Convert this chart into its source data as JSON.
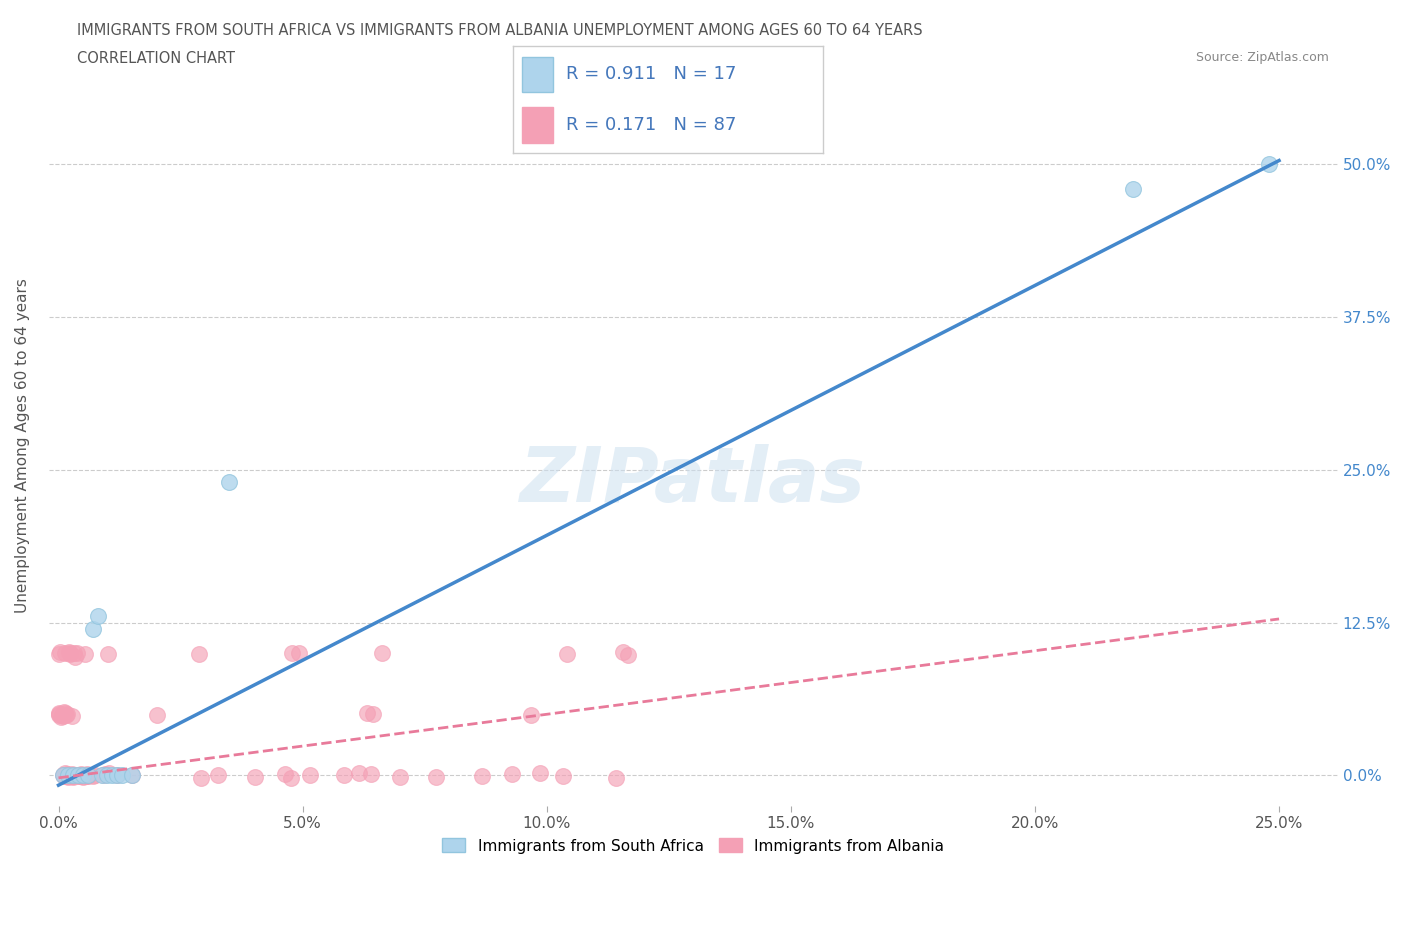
{
  "title_line1": "IMMIGRANTS FROM SOUTH AFRICA VS IMMIGRANTS FROM ALBANIA UNEMPLOYMENT AMONG AGES 60 TO 64 YEARS",
  "title_line2": "CORRELATION CHART",
  "source_text": "Source: ZipAtlas.com",
  "ylabel": "Unemployment Among Ages 60 to 64 years",
  "watermark": "ZIPatlas",
  "south_africa": {
    "color": "#92c5de",
    "color_fill": "#aed4ec",
    "R": 0.911,
    "N": 17,
    "x": [
      0.001,
      0.002,
      0.003,
      0.004,
      0.005,
      0.006,
      0.007,
      0.008,
      0.009,
      0.01,
      0.012,
      0.015,
      0.02,
      0.03,
      0.035,
      0.222,
      0.248
    ],
    "y": [
      0.0,
      0.0,
      0.0,
      0.0,
      0.0,
      0.0,
      0.0,
      0.0,
      0.0,
      0.0,
      0.0,
      0.14,
      0.0,
      0.0,
      0.24,
      0.48,
      0.5
    ]
  },
  "albania": {
    "color": "#f4a0b5",
    "color_fill": "#f4a0b5",
    "R": 0.171,
    "N": 87,
    "x": [
      0.0,
      0.0,
      0.0,
      0.001,
      0.001,
      0.001,
      0.001,
      0.002,
      0.002,
      0.002,
      0.003,
      0.003,
      0.003,
      0.004,
      0.004,
      0.004,
      0.005,
      0.005,
      0.005,
      0.005,
      0.006,
      0.006,
      0.006,
      0.007,
      0.007,
      0.007,
      0.008,
      0.008,
      0.008,
      0.009,
      0.009,
      0.009,
      0.01,
      0.01,
      0.01,
      0.011,
      0.011,
      0.012,
      0.012,
      0.012,
      0.013,
      0.013,
      0.014,
      0.014,
      0.015,
      0.015,
      0.016,
      0.016,
      0.017,
      0.018,
      0.019,
      0.02,
      0.021,
      0.022,
      0.023,
      0.025,
      0.026,
      0.027,
      0.028,
      0.03,
      0.031,
      0.033,
      0.034,
      0.036,
      0.038,
      0.04,
      0.042,
      0.045,
      0.048,
      0.05,
      0.052,
      0.055,
      0.058,
      0.06,
      0.063,
      0.065,
      0.068,
      0.07,
      0.073,
      0.075,
      0.078,
      0.08,
      0.085,
      0.09,
      0.095,
      0.1,
      0.12
    ],
    "y": [
      0.0,
      0.0,
      0.0,
      0.0,
      0.0,
      0.0,
      0.0,
      0.0,
      0.0,
      0.0,
      0.0,
      0.0,
      0.0,
      0.0,
      0.0,
      0.0,
      0.0,
      0.0,
      0.0,
      0.0,
      0.0,
      0.0,
      0.0,
      0.0,
      0.0,
      0.0,
      0.0,
      0.0,
      0.0,
      0.0,
      0.0,
      0.0,
      0.0,
      0.0,
      0.0,
      0.0,
      0.0,
      0.0,
      0.0,
      0.0,
      0.0,
      0.0,
      0.0,
      0.0,
      0.0,
      0.0,
      0.0,
      0.0,
      0.0,
      0.0,
      0.0,
      0.0,
      0.0,
      0.0,
      0.0,
      0.0,
      0.0,
      0.0,
      0.0,
      0.0,
      0.0,
      0.0,
      0.0,
      0.0,
      0.0,
      0.0,
      0.0,
      0.0,
      0.0,
      0.0,
      0.0,
      0.0,
      0.0,
      0.0,
      0.0,
      0.0,
      0.0,
      0.0,
      0.0,
      0.0,
      0.0,
      0.0,
      0.0,
      0.0,
      0.0,
      0.0,
      0.0
    ]
  },
  "albania_scattered": {
    "x": [
      0.0,
      0.001,
      0.002,
      0.003,
      0.004,
      0.005,
      0.006,
      0.007,
      0.008,
      0.009,
      0.01,
      0.011,
      0.012,
      0.013,
      0.014,
      0.015,
      0.016,
      0.017,
      0.018,
      0.019,
      0.02,
      0.022,
      0.024,
      0.026,
      0.028,
      0.03,
      0.035,
      0.04,
      0.05,
      0.06,
      0.07,
      0.08,
      0.1
    ],
    "y_low": [
      0.0,
      0.0,
      0.0,
      0.0,
      0.0,
      0.0,
      0.0,
      0.0,
      0.0,
      0.0,
      0.0,
      0.0,
      0.0,
      0.0,
      0.0,
      0.0,
      0.0,
      0.0,
      0.0,
      0.0,
      0.0,
      0.0,
      0.0,
      0.0,
      0.0,
      0.0,
      0.0,
      0.0,
      0.0,
      0.0,
      0.0,
      0.0,
      0.0
    ],
    "y_mid": [
      0.05,
      0.05,
      0.05,
      0.05,
      0.05,
      0.05,
      0.05,
      0.05,
      0.05,
      0.05,
      0.05,
      0.05,
      0.05,
      0.05,
      0.05,
      0.05,
      0.05,
      0.05,
      0.05,
      0.05,
      0.05,
      0.05,
      0.05,
      0.05,
      0.05,
      0.05,
      0.05,
      0.05,
      0.05,
      0.05,
      0.05,
      0.05,
      0.05
    ],
    "y_high": [
      0.1,
      0.1,
      0.1,
      0.1,
      0.1,
      0.1,
      0.1,
      0.1,
      0.1,
      0.1,
      0.1,
      0.1,
      0.1,
      0.1,
      0.1,
      0.1,
      0.1,
      0.1,
      0.1,
      0.1,
      0.1,
      0.1,
      0.1,
      0.1,
      0.1,
      0.1,
      0.1,
      0.1,
      0.1,
      0.1,
      0.1,
      0.1,
      0.1
    ]
  },
  "blue_line": {
    "x0": 0.0,
    "y0": -0.008,
    "x1": 0.25,
    "y1": 0.503
  },
  "pink_line": {
    "x0": 0.0,
    "y0": -0.002,
    "x1": 0.25,
    "y1": 0.128
  },
  "xlim": [
    -0.002,
    0.262
  ],
  "ylim": [
    -0.025,
    0.565
  ],
  "xticks": [
    0.0,
    0.05,
    0.1,
    0.15,
    0.2,
    0.25
  ],
  "xticklabels": [
    "0.0%",
    "5.0%",
    "10.0%",
    "15.0%",
    "20.0%",
    "25.0%"
  ],
  "yticks_right": [
    0.0,
    0.125,
    0.25,
    0.375,
    0.5
  ],
  "yticklabels_right": [
    "0.0%",
    "12.5%",
    "25.0%",
    "37.5%",
    "50.0%"
  ],
  "grid_color": "#cccccc",
  "background_color": "#ffffff",
  "line_blue_color": "#4488cc",
  "line_pink_color": "#e87a9a",
  "legend_text_color": "#4477bb",
  "title_color": "#555555",
  "source_color": "#888888"
}
